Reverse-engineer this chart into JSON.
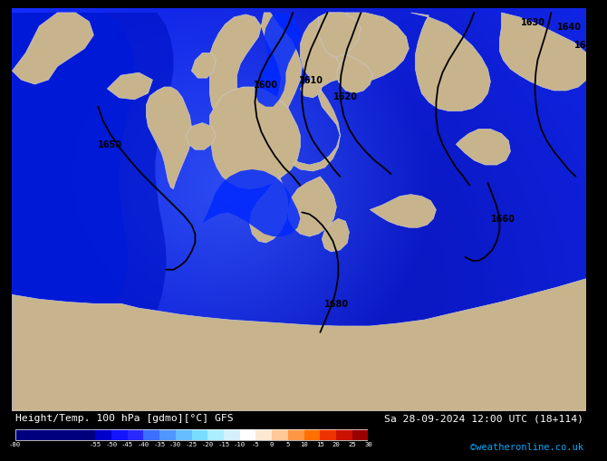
{
  "title_left": "Height/Temp. 100 hPa [gdmo][°C] GFS",
  "title_right": "Sa 28-09-2024 12:00 UTC (18+114)",
  "credit": "©weatheronline.co.uk",
  "colorbar_ticks": [
    -80,
    -55,
    -50,
    -45,
    -40,
    -35,
    -30,
    -25,
    -20,
    -15,
    -10,
    -5,
    0,
    5,
    10,
    15,
    20,
    25,
    30
  ],
  "colorbar_colors": [
    "#00007f",
    "#0000cd",
    "#1414ff",
    "#2828ff",
    "#3c6eff",
    "#5096ff",
    "#64beff",
    "#78dcff",
    "#aaeeff",
    "#d4f0ff",
    "#ffffff",
    "#ffe8d2",
    "#ffc896",
    "#ff9644",
    "#ff7000",
    "#ee3300",
    "#cc1100",
    "#990000",
    "#6a0000"
  ],
  "bottom_bg": "#000000",
  "text_color": "#ffffff",
  "credit_color": "#00aaff",
  "land_fill": "#c8b48c",
  "land_edge": "#d0c090",
  "border_color": "#c8c8c8",
  "ocean_color_deep": "#0000cc",
  "ocean_color_mid": "#0028ff",
  "ocean_color_light": "#2255ff",
  "contour_color": "#000000",
  "contour_lw": 1.3,
  "contour_labels": [
    "1600",
    "1610",
    "1620",
    "1630",
    "1640",
    "1650",
    "1660",
    "1680"
  ],
  "label_fontsize": 7
}
